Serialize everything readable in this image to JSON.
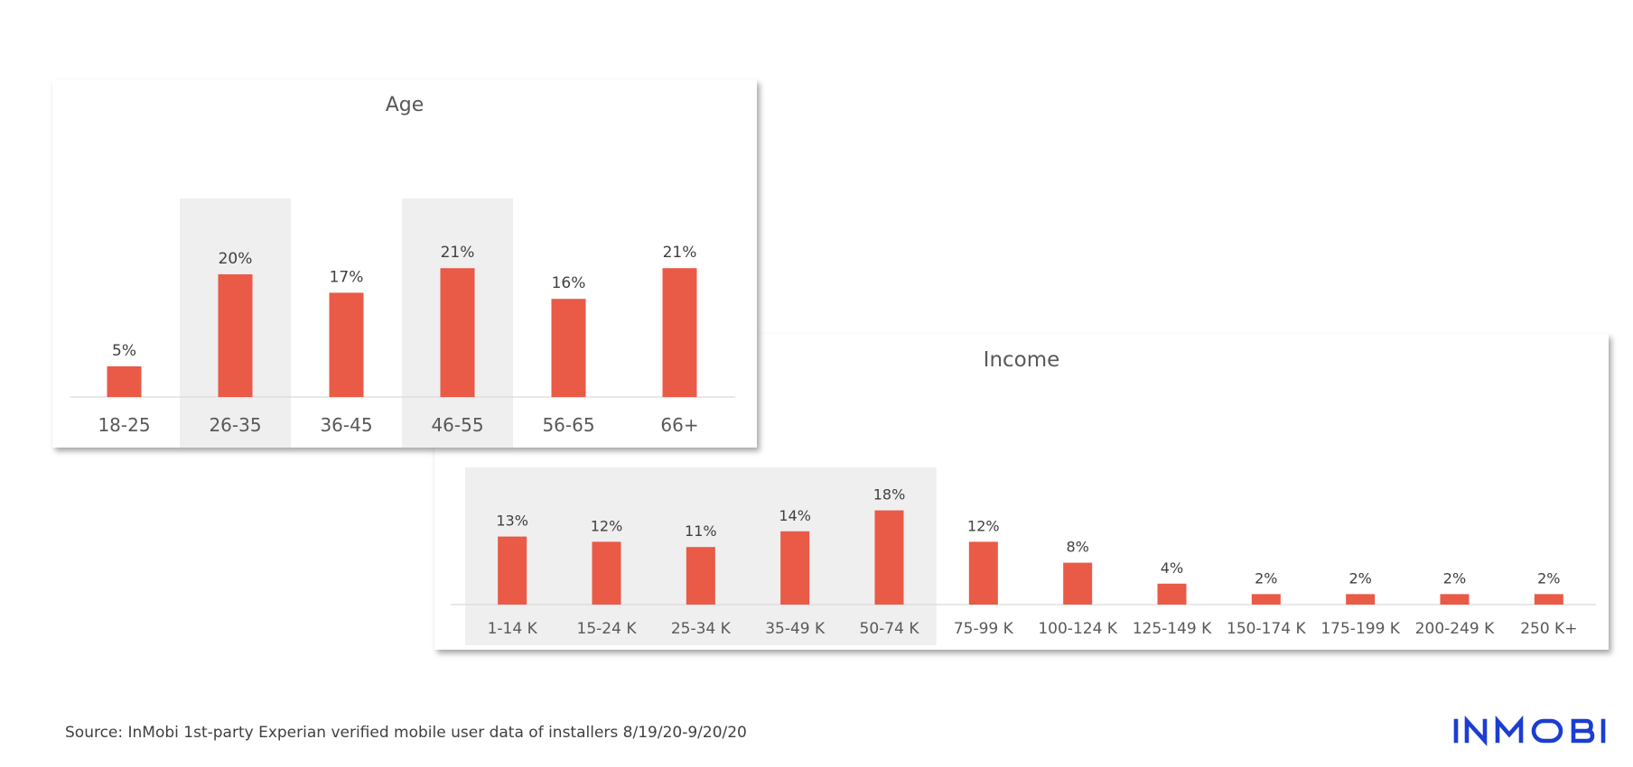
{
  "chart_data": [
    {
      "type": "bar",
      "title": "Age",
      "categories": [
        "18-25",
        "26-35",
        "36-45",
        "46-55",
        "56-65",
        "66+"
      ],
      "values": [
        5,
        20,
        17,
        21,
        16,
        21
      ],
      "value_labels": [
        "5%",
        "20%",
        "17%",
        "21%",
        "16%",
        "21%"
      ],
      "highlighted_categories": [
        "26-35",
        "46-55"
      ],
      "unit": "%",
      "ylim": [
        0,
        30
      ],
      "grid": false,
      "bar_color": "#E95A47",
      "highlight_color": "#EFEFEF"
    },
    {
      "type": "bar",
      "title": "Income",
      "categories": [
        "1-14 K",
        "15-24 K",
        "25-34 K",
        "35-49 K",
        "50-74 K",
        "75-99 K",
        "100-124 K",
        "125-149 K",
        "150-174 K",
        "175-199 K",
        "200-249 K",
        "250 K+"
      ],
      "values": [
        13,
        12,
        11,
        14,
        18,
        12,
        8,
        4,
        2,
        2,
        2,
        2
      ],
      "value_labels": [
        "13%",
        "12%",
        "11%",
        "14%",
        "18%",
        "12%",
        "8%",
        "4%",
        "2%",
        "2%",
        "2%",
        "2%"
      ],
      "highlighted_categories": [
        "1-14 K",
        "15-24 K",
        "25-34 K",
        "35-49 K",
        "50-74 K"
      ],
      "unit": "%",
      "ylim": [
        0,
        18
      ],
      "grid": false,
      "bar_color": "#E95A47",
      "highlight_color": "#EFEFEF"
    }
  ],
  "footer": {
    "source": "Source: InMobi 1st-party Experian verified mobile user data of installers 8/19/20-9/20/20"
  },
  "brand": {
    "logo_text": "INMOBI",
    "color": "#1B3DD1"
  }
}
